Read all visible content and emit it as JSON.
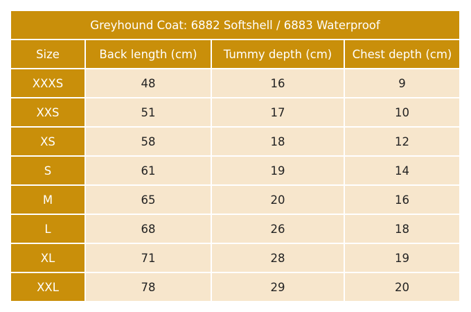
{
  "table": {
    "title": "Greyhound Coat: 6882 Softshell / 6883 Waterproof",
    "headers": [
      "Size",
      "Back length (cm)",
      "Tummy depth (cm)",
      "Chest depth (cm)"
    ],
    "rows": [
      {
        "size": "XXXS",
        "back_length": "48",
        "tummy_depth": "16",
        "chest_depth": "9"
      },
      {
        "size": "XXS",
        "back_length": "51",
        "tummy_depth": "17",
        "chest_depth": "10"
      },
      {
        "size": "XS",
        "back_length": "58",
        "tummy_depth": "18",
        "chest_depth": "12"
      },
      {
        "size": "S",
        "back_length": "61",
        "tummy_depth": "19",
        "chest_depth": "14"
      },
      {
        "size": "M",
        "back_length": "65",
        "tummy_depth": "20",
        "chest_depth": "16"
      },
      {
        "size": "L",
        "back_length": "68",
        "tummy_depth": "26",
        "chest_depth": "18"
      },
      {
        "size": "XL",
        "back_length": "71",
        "tummy_depth": "28",
        "chest_depth": "19"
      },
      {
        "size": "XXL",
        "back_length": "78",
        "tummy_depth": "29",
        "chest_depth": "20"
      }
    ]
  },
  "colors": {
    "header_background": "#c98f0a",
    "header_text": "#ffffff",
    "cell_background": "#f7e6cc",
    "cell_text": "#222222"
  }
}
